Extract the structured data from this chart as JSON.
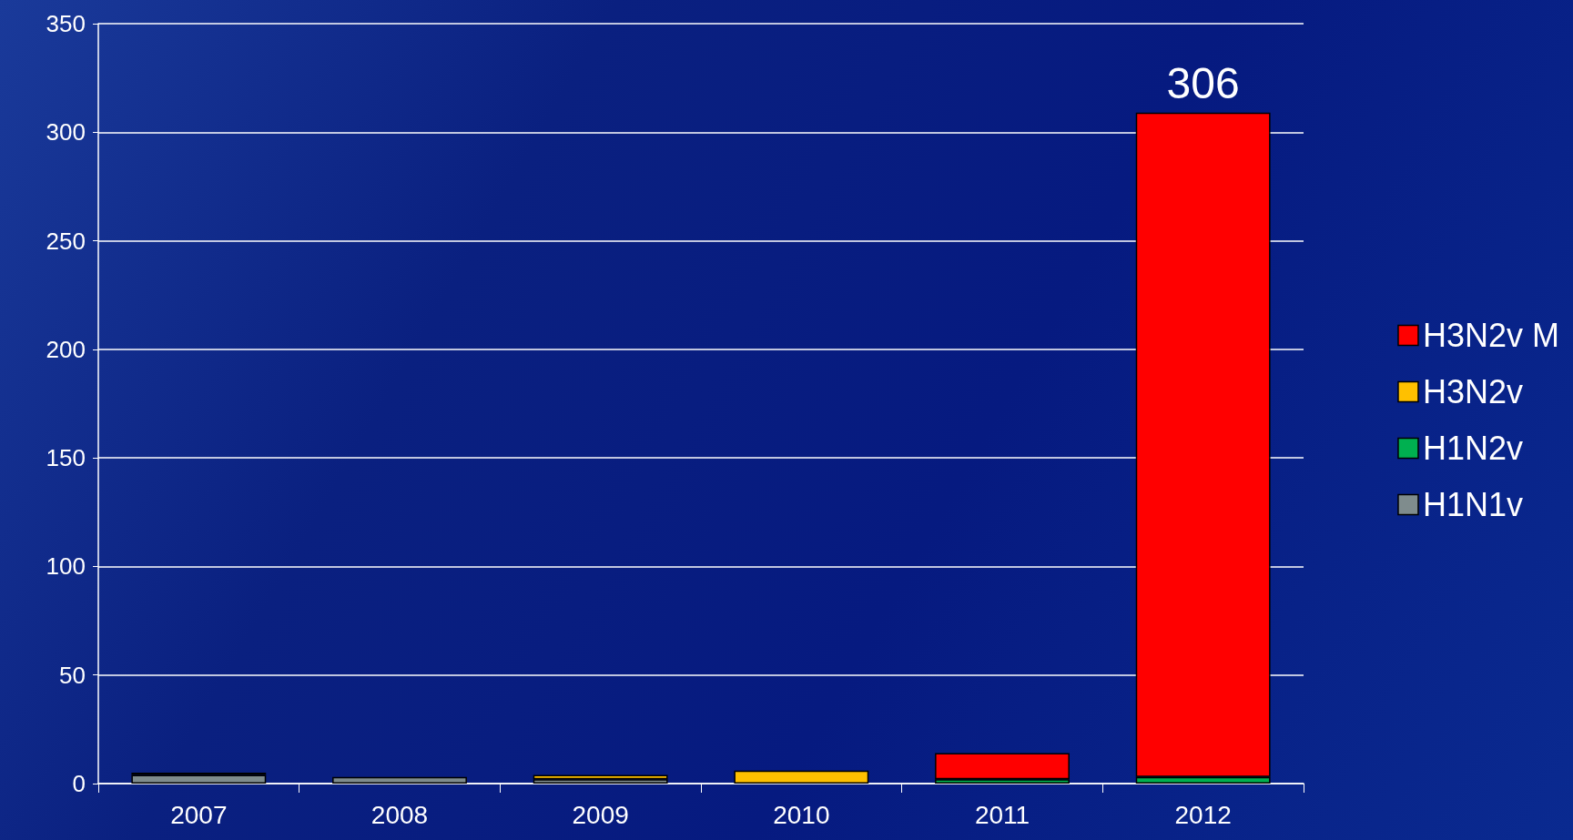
{
  "chart_data": {
    "type": "bar",
    "stacked": true,
    "categories": [
      "2007",
      "2008",
      "2009",
      "2010",
      "2011",
      "2012"
    ],
    "series": [
      {
        "name": "H1N1v",
        "color": "#7f8c8d",
        "values": [
          4,
          3,
          2,
          null,
          null,
          null
        ]
      },
      {
        "name": "H1N2v",
        "color": "#00b050",
        "values": [
          1,
          null,
          null,
          null,
          2,
          3
        ]
      },
      {
        "name": "H3N2v",
        "color": "#ffc000",
        "values": [
          null,
          null,
          2,
          6,
          null,
          null
        ]
      },
      {
        "name": "H3N2v M",
        "color": "#ff0000",
        "values": [
          null,
          null,
          null,
          null,
          12,
          306
        ],
        "value_labels": [
          null,
          null,
          null,
          null,
          null,
          "306"
        ]
      }
    ],
    "ylim": [
      0,
      350
    ],
    "yticks": [
      0,
      50,
      100,
      150,
      200,
      250,
      300,
      350
    ],
    "grid": "y",
    "legend": "right"
  }
}
